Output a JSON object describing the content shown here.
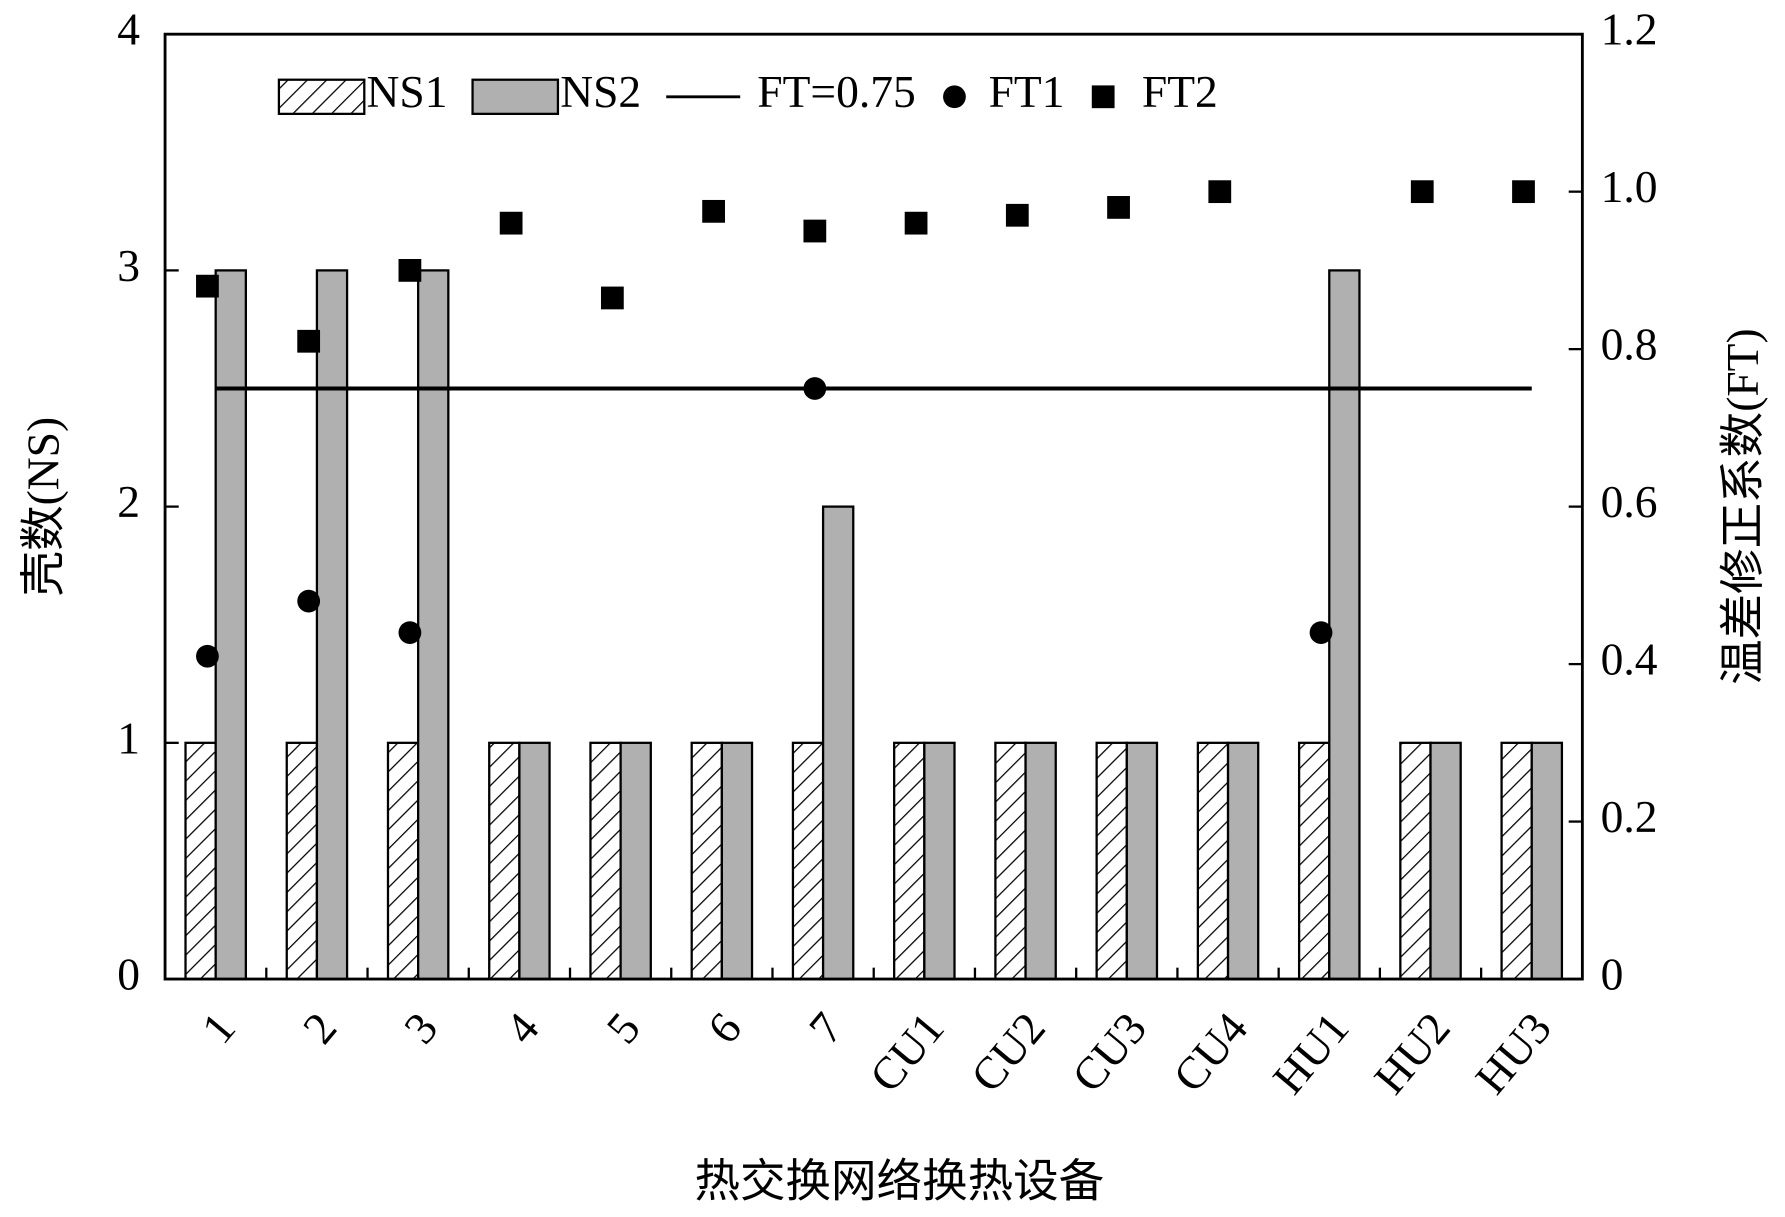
{
  "chart_data": {
    "type": "bar",
    "y_label": "壳数(NS)",
    "y2_label": "温差修正系数(FT)",
    "x_label": "热交换网络换热设备",
    "categories": [
      "1",
      "2",
      "3",
      "4",
      "5",
      "6",
      "7",
      "CU1",
      "CU2",
      "CU3",
      "CU4",
      "HU1",
      "HU2",
      "HU3"
    ],
    "series": [
      {
        "name": "NS1",
        "type": "bar",
        "pattern": "hatch",
        "color": "#ffffff",
        "values": [
          1,
          1,
          1,
          1,
          1,
          1,
          1,
          1,
          1,
          1,
          1,
          1,
          1,
          1
        ]
      },
      {
        "name": "NS2",
        "type": "bar",
        "color": "#b0b0b0",
        "values": [
          3,
          3,
          3,
          1,
          1,
          1,
          2,
          1,
          1,
          1,
          1,
          3,
          1,
          1
        ]
      },
      {
        "name": "FT=0.75",
        "type": "line",
        "axis": "y2",
        "color": "#000000",
        "values": [
          0.75,
          0.75,
          0.75,
          0.75,
          0.75,
          0.75,
          0.75,
          0.75,
          0.75,
          0.75,
          0.75,
          0.75,
          0.75,
          0.75
        ]
      },
      {
        "name": "FT1",
        "type": "scatter",
        "marker": "circle",
        "axis": "y2",
        "color": "#000000",
        "values": [
          0.41,
          0.48,
          0.44,
          null,
          null,
          null,
          0.75,
          null,
          null,
          null,
          null,
          0.44,
          null,
          null
        ]
      },
      {
        "name": "FT2",
        "type": "scatter",
        "marker": "square",
        "axis": "y2",
        "color": "#000000",
        "values": [
          0.88,
          0.81,
          0.9,
          0.96,
          0.865,
          0.975,
          0.95,
          0.96,
          0.97,
          0.98,
          1.0,
          null,
          1.0,
          1.0
        ]
      }
    ],
    "ylim": [
      0,
      4
    ],
    "yticks": [
      0,
      1,
      2,
      3,
      4
    ],
    "y2lim": [
      0,
      1.2
    ],
    "y2ticks": [
      0,
      0.2,
      0.4,
      0.6,
      0.8,
      {
        "value": 1.0,
        "label": "1.0"
      },
      1.2
    ],
    "legend": "top",
    "grid": false
  }
}
